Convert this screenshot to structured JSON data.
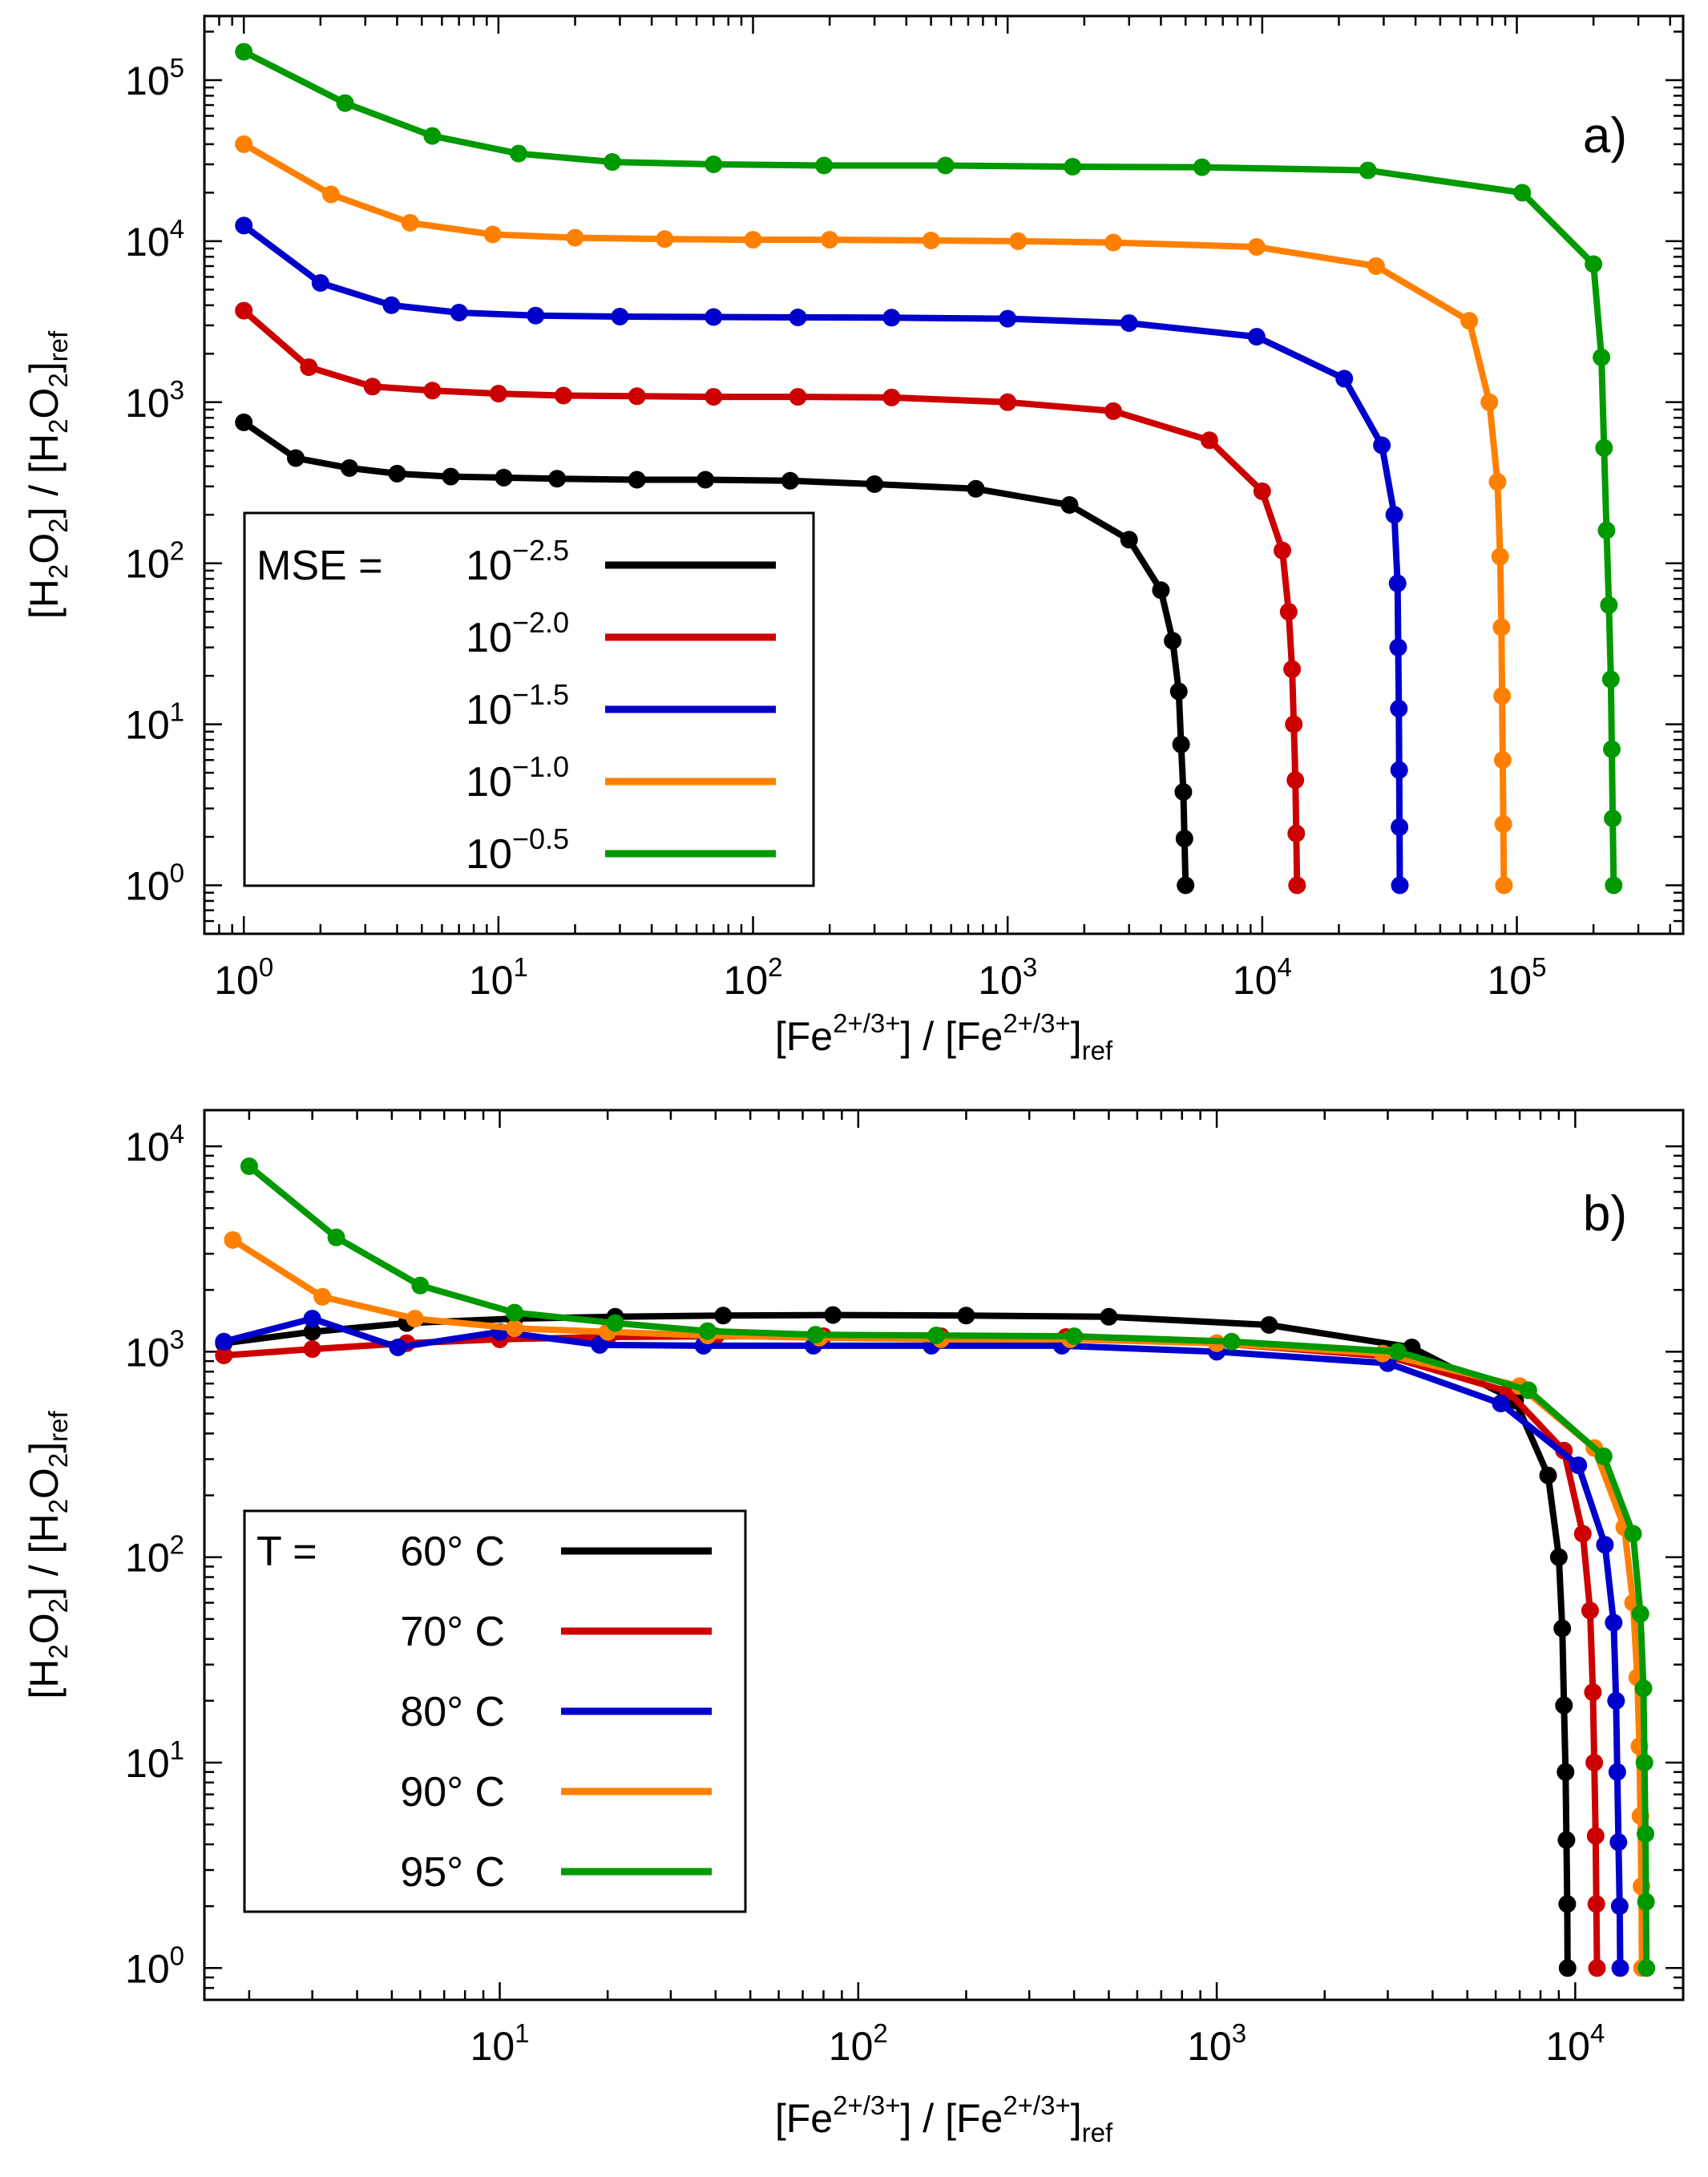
{
  "chart_data": [
    {
      "type": "line",
      "panel_label": "a)",
      "xlabel": {
        "base": "[Fe",
        "sup": "2+/3+",
        "mid": "] / [Fe",
        "sup2": "2+/3+",
        "tail": "]",
        "sub": "ref"
      },
      "ylabel": {
        "p1": "[H",
        "s1": "2",
        "p2": "O",
        "s2": "2",
        "p3": "] / [H",
        "s3": "2",
        "p4": "O",
        "s4": "2",
        "p5": "]",
        "s5": "ref"
      },
      "xscale": "log",
      "yscale": "log",
      "xlim": [
        0.7,
        450000
      ],
      "ylim": [
        0.5,
        250000
      ],
      "xticks": [
        {
          "base": "10",
          "exp": "0",
          "v": 1
        },
        {
          "base": "10",
          "exp": "1",
          "v": 10
        },
        {
          "base": "10",
          "exp": "2",
          "v": 100
        },
        {
          "base": "10",
          "exp": "3",
          "v": 1000
        },
        {
          "base": "10",
          "exp": "4",
          "v": 10000
        },
        {
          "base": "10",
          "exp": "5",
          "v": 100000
        }
      ],
      "yticks": [
        {
          "base": "10",
          "exp": "0",
          "v": 1
        },
        {
          "base": "10",
          "exp": "1",
          "v": 10
        },
        {
          "base": "10",
          "exp": "2",
          "v": 100
        },
        {
          "base": "10",
          "exp": "3",
          "v": 1000
        },
        {
          "base": "10",
          "exp": "4",
          "v": 10000
        },
        {
          "base": "10",
          "exp": "5",
          "v": 100000
        }
      ],
      "grid": false,
      "legend": {
        "placement": "left-middle",
        "prefix": "MSE = ",
        "entries": [
          {
            "base": "10",
            "exp": "−2.5"
          },
          {
            "base": "10",
            "exp": "−2.0"
          },
          {
            "base": "10",
            "exp": "−1.5"
          },
          {
            "base": "10",
            "exp": "−1.0"
          },
          {
            "base": "10",
            "exp": "−0.5"
          }
        ]
      },
      "series": [
        {
          "color": "#000000",
          "points": [
            [
              1,
              750
            ],
            [
              1.6,
              450
            ],
            [
              2.6,
              390
            ],
            [
              4,
              360
            ],
            [
              6.5,
              345
            ],
            [
              10.5,
              340
            ],
            [
              17,
              335
            ],
            [
              35,
              330
            ],
            [
              65,
              330
            ],
            [
              140,
              325
            ],
            [
              300,
              310
            ],
            [
              750,
              290
            ],
            [
              1750,
              230
            ],
            [
              3000,
              140
            ],
            [
              4000,
              68
            ],
            [
              4450,
              33
            ],
            [
              4700,
              16
            ],
            [
              4800,
              7.5
            ],
            [
              4900,
              3.8
            ],
            [
              4950,
              1.95
            ],
            [
              5000,
              1
            ]
          ]
        },
        {
          "color": "#cc0000",
          "points": [
            [
              1,
              3700
            ],
            [
              1.8,
              1650
            ],
            [
              3.2,
              1250
            ],
            [
              5.5,
              1180
            ],
            [
              10,
              1130
            ],
            [
              18,
              1100
            ],
            [
              35,
              1090
            ],
            [
              70,
              1080
            ],
            [
              150,
              1080
            ],
            [
              350,
              1070
            ],
            [
              1000,
              1000
            ],
            [
              2600,
              880
            ],
            [
              6200,
              580
            ],
            [
              10000,
              280
            ],
            [
              12000,
              120
            ],
            [
              12700,
              50
            ],
            [
              13100,
              22
            ],
            [
              13300,
              10
            ],
            [
              13500,
              4.5
            ],
            [
              13600,
              2.1
            ],
            [
              13700,
              1
            ]
          ]
        },
        {
          "color": "#0000cc",
          "points": [
            [
              1,
              12500
            ],
            [
              2,
              5500
            ],
            [
              3.8,
              4000
            ],
            [
              7,
              3600
            ],
            [
              14,
              3450
            ],
            [
              30,
              3400
            ],
            [
              70,
              3380
            ],
            [
              150,
              3360
            ],
            [
              350,
              3350
            ],
            [
              1000,
              3300
            ],
            [
              3000,
              3100
            ],
            [
              9500,
              2550
            ],
            [
              21000,
              1400
            ],
            [
              29500,
              540
            ],
            [
              33000,
              200
            ],
            [
              34000,
              75
            ],
            [
              34200,
              30
            ],
            [
              34400,
              12.5
            ],
            [
              34500,
              5.2
            ],
            [
              34600,
              2.3
            ],
            [
              34700,
              1
            ]
          ]
        },
        {
          "color": "#ff8000",
          "points": [
            [
              1,
              40000
            ],
            [
              2.2,
              19500
            ],
            [
              4.5,
              13000
            ],
            [
              9.5,
              11000
            ],
            [
              20,
              10500
            ],
            [
              45,
              10300
            ],
            [
              100,
              10200
            ],
            [
              200,
              10200
            ],
            [
              500,
              10100
            ],
            [
              1100,
              10000
            ],
            [
              2600,
              9800
            ],
            [
              9500,
              9200
            ],
            [
              28000,
              7000
            ],
            [
              65000,
              3200
            ],
            [
              78000,
              1000
            ],
            [
              84000,
              320
            ],
            [
              86000,
              110
            ],
            [
              87000,
              40
            ],
            [
              87500,
              15
            ],
            [
              88000,
              6
            ],
            [
              88500,
              2.4
            ],
            [
              89000,
              1
            ]
          ]
        },
        {
          "color": "#009900",
          "points": [
            [
              1,
              150000
            ],
            [
              2.5,
              72000
            ],
            [
              5.5,
              45000
            ],
            [
              12,
              35000
            ],
            [
              28,
              31000
            ],
            [
              70,
              30000
            ],
            [
              190,
              29500
            ],
            [
              570,
              29500
            ],
            [
              1800,
              29000
            ],
            [
              5800,
              28800
            ],
            [
              26000,
              27500
            ],
            [
              105000,
              20000
            ],
            [
              200000,
              7200
            ],
            [
              215000,
              1900
            ],
            [
              220000,
              520
            ],
            [
              225000,
              160
            ],
            [
              230000,
              55
            ],
            [
              234000,
              19
            ],
            [
              236000,
              7
            ],
            [
              238000,
              2.6
            ],
            [
              240000,
              1
            ]
          ]
        }
      ]
    },
    {
      "type": "line",
      "panel_label": "b)",
      "xlabel": {
        "base": "[Fe",
        "sup": "2+/3+",
        "mid": "] / [Fe",
        "sup2": "2+/3+",
        "tail": "]",
        "sub": "ref"
      },
      "ylabel": {
        "p1": "[H",
        "s1": "2",
        "p2": "O",
        "s2": "2",
        "p3": "] / [H",
        "s3": "2",
        "p4": "O",
        "s4": "2",
        "p5": "]",
        "s5": "ref"
      },
      "xscale": "log",
      "yscale": "log",
      "xlim": [
        1.5,
        20000
      ],
      "ylim": [
        0.7,
        15000
      ],
      "xticks": [
        {
          "base": "10",
          "exp": "1",
          "v": 10
        },
        {
          "base": "10",
          "exp": "2",
          "v": 100
        },
        {
          "base": "10",
          "exp": "3",
          "v": 1000
        },
        {
          "base": "10",
          "exp": "4",
          "v": 10000
        }
      ],
      "yticks": [
        {
          "base": "10",
          "exp": "0",
          "v": 1
        },
        {
          "base": "10",
          "exp": "1",
          "v": 10
        },
        {
          "base": "10",
          "exp": "2",
          "v": 100
        },
        {
          "base": "10",
          "exp": "3",
          "v": 1000
        },
        {
          "base": "10",
          "exp": "4",
          "v": 10000
        }
      ],
      "grid": false,
      "legend": {
        "placement": "left-bottom",
        "prefix": "T = ",
        "entries": [
          {
            "text": "60° C"
          },
          {
            "text": "70° C"
          },
          {
            "text": "80° C"
          },
          {
            "text": "90° C"
          },
          {
            "text": "95° C"
          }
        ]
      },
      "series": [
        {
          "color": "#000000",
          "points": [
            [
              1.7,
              1100
            ],
            [
              3,
              1250
            ],
            [
              5.5,
              1380
            ],
            [
              11,
              1450
            ],
            [
              21,
              1480
            ],
            [
              42,
              1500
            ],
            [
              85,
              1510
            ],
            [
              200,
              1500
            ],
            [
              500,
              1480
            ],
            [
              1400,
              1350
            ],
            [
              3500,
              1050
            ],
            [
              6800,
              580
            ],
            [
              8400,
              250
            ],
            [
              9000,
              100
            ],
            [
              9200,
              45
            ],
            [
              9300,
              19
            ],
            [
              9400,
              9
            ],
            [
              9450,
              4.2
            ],
            [
              9500,
              2.05
            ],
            [
              9520,
              1
            ]
          ]
        },
        {
          "color": "#cc0000",
          "points": [
            [
              1.7,
              960
            ],
            [
              3,
              1030
            ],
            [
              5.5,
              1100
            ],
            [
              10,
              1150
            ],
            [
              20,
              1180
            ],
            [
              40,
              1190
            ],
            [
              80,
              1190
            ],
            [
              170,
              1190
            ],
            [
              380,
              1180
            ],
            [
              1000,
              1100
            ],
            [
              3000,
              950
            ],
            [
              6500,
              640
            ],
            [
              9300,
              330
            ],
            [
              10500,
              130
            ],
            [
              11000,
              55
            ],
            [
              11200,
              22
            ],
            [
              11300,
              10
            ],
            [
              11400,
              4.4
            ],
            [
              11450,
              2.05
            ],
            [
              11500,
              1
            ]
          ]
        },
        {
          "color": "#0000cc",
          "points": [
            [
              1.7,
              1120
            ],
            [
              3,
              1450
            ],
            [
              5.2,
              1050
            ],
            [
              10,
              1250
            ],
            [
              19,
              1080
            ],
            [
              37,
              1070
            ],
            [
              75,
              1070
            ],
            [
              160,
              1070
            ],
            [
              370,
              1070
            ],
            [
              1000,
              1000
            ],
            [
              3000,
              880
            ],
            [
              6200,
              560
            ],
            [
              10200,
              280
            ],
            [
              12100,
              115
            ],
            [
              12800,
              48
            ],
            [
              13000,
              20
            ],
            [
              13100,
              9
            ],
            [
              13200,
              4.1
            ],
            [
              13300,
              2
            ],
            [
              13350,
              1
            ]
          ]
        },
        {
          "color": "#ff8000",
          "points": [
            [
              1.8,
              3500
            ],
            [
              3.2,
              1850
            ],
            [
              5.8,
              1450
            ],
            [
              11,
              1300
            ],
            [
              20,
              1250
            ],
            [
              38,
              1200
            ],
            [
              78,
              1170
            ],
            [
              170,
              1150
            ],
            [
              390,
              1150
            ],
            [
              1000,
              1100
            ],
            [
              2900,
              980
            ],
            [
              7000,
              680
            ],
            [
              11300,
              340
            ],
            [
              13700,
              140
            ],
            [
              14500,
              60
            ],
            [
              14900,
              26
            ],
            [
              15100,
              12
            ],
            [
              15200,
              5.5
            ],
            [
              15300,
              2.5
            ],
            [
              15350,
              1
            ]
          ]
        },
        {
          "color": "#009900",
          "points": [
            [
              2,
              8000
            ],
            [
              3.5,
              3600
            ],
            [
              6,
              2100
            ],
            [
              11,
              1550
            ],
            [
              21,
              1380
            ],
            [
              38,
              1260
            ],
            [
              76,
              1210
            ],
            [
              165,
              1200
            ],
            [
              400,
              1190
            ],
            [
              1100,
              1120
            ],
            [
              3200,
              1000
            ],
            [
              7400,
              650
            ],
            [
              12000,
              310
            ],
            [
              14500,
              130
            ],
            [
              15200,
              53
            ],
            [
              15500,
              23
            ],
            [
              15600,
              10
            ],
            [
              15700,
              4.5
            ],
            [
              15750,
              2.1
            ],
            [
              15800,
              1
            ]
          ]
        }
      ]
    }
  ]
}
